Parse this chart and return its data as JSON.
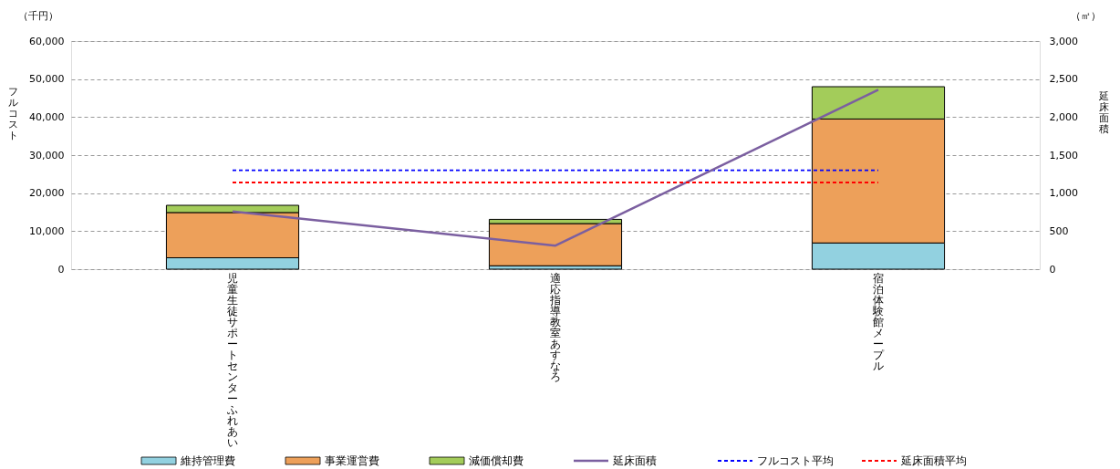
{
  "chart_data": {
    "type": "bar",
    "stacked": true,
    "categories": [
      "児童生徒サポートセンターふれあい",
      "適応指導教室あすなろ",
      "宿泊体験館メープル"
    ],
    "series": [
      {
        "name": "維持管理費",
        "color": "#92d1e0",
        "values": [
          3000,
          900,
          6900
        ]
      },
      {
        "name": "事業運営費",
        "color": "#eda05a",
        "values": [
          11900,
          11100,
          32600
        ]
      },
      {
        "name": "減価償却費",
        "color": "#a3cc5a",
        "values": [
          1900,
          1100,
          8500
        ]
      },
      {
        "name": "延床面積",
        "type": "line",
        "axis": "y2",
        "color": "#7b5fa0",
        "values": [
          760,
          310,
          2360
        ]
      },
      {
        "name": "フルコスト平均",
        "type": "line",
        "color": "#0000ff",
        "line_style": "dashed",
        "values": [
          26000,
          26000,
          26000
        ]
      },
      {
        "name": "延床面積平均",
        "type": "line",
        "axis": "y2",
        "color": "#ff0000",
        "line_style": "dashed",
        "values": [
          1140,
          1140,
          1140
        ]
      }
    ],
    "ylim": [
      0,
      60000
    ],
    "yticks": [
      0,
      {
        "value": 10000,
        "label": "10,000"
      },
      {
        "value": 20000,
        "label": "20,000"
      },
      {
        "value": 30000,
        "label": "30,000"
      },
      {
        "value": 40000,
        "label": "40,000"
      },
      {
        "value": 50000,
        "label": "50,000"
      },
      {
        "value": 60000,
        "label": "60,000"
      }
    ],
    "y2lim": [
      0,
      3000
    ],
    "y2ticks": [
      0,
      500,
      {
        "value": 1000,
        "label": "1,000"
      },
      {
        "value": 1500,
        "label": "1,500"
      },
      {
        "value": 2000,
        "label": "2,000"
      },
      {
        "value": 2500,
        "label": "2,500"
      },
      {
        "value": 3000,
        "label": "3,000"
      }
    ],
    "ylabel": "フルコスト",
    "y2label": "延床面積",
    "annotations": [
      "（千円）",
      "（㎡）"
    ],
    "grid": "y",
    "legend": "bottom"
  }
}
